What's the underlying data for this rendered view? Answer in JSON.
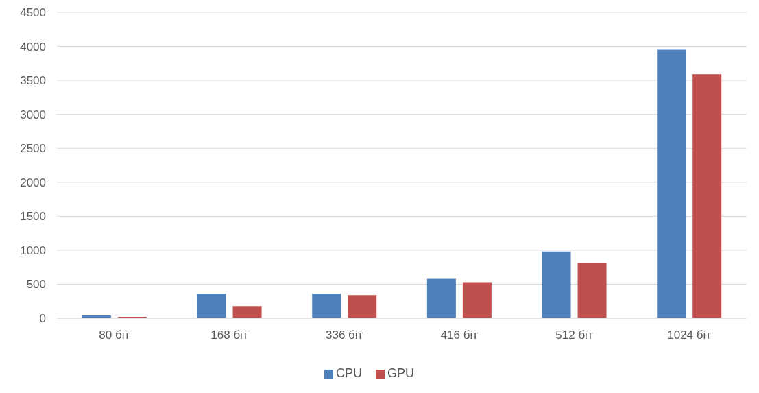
{
  "chart_data": {
    "type": "bar",
    "categories": [
      "80 біт",
      "168 біт",
      "336 біт",
      "416 біт",
      "512 біт",
      "1024 біт"
    ],
    "series": [
      {
        "name": "CPU",
        "color": "#4f81bd",
        "values": [
          40,
          360,
          360,
          580,
          980,
          3950
        ]
      },
      {
        "name": "GPU",
        "color": "#c0504d",
        "values": [
          20,
          180,
          340,
          530,
          810,
          3590
        ]
      }
    ],
    "ylim": [
      0,
      4500
    ],
    "yticks": [
      0,
      500,
      1000,
      1500,
      2000,
      2500,
      3000,
      3500,
      4000,
      4500
    ],
    "grid": "y",
    "legend": "bottom"
  }
}
